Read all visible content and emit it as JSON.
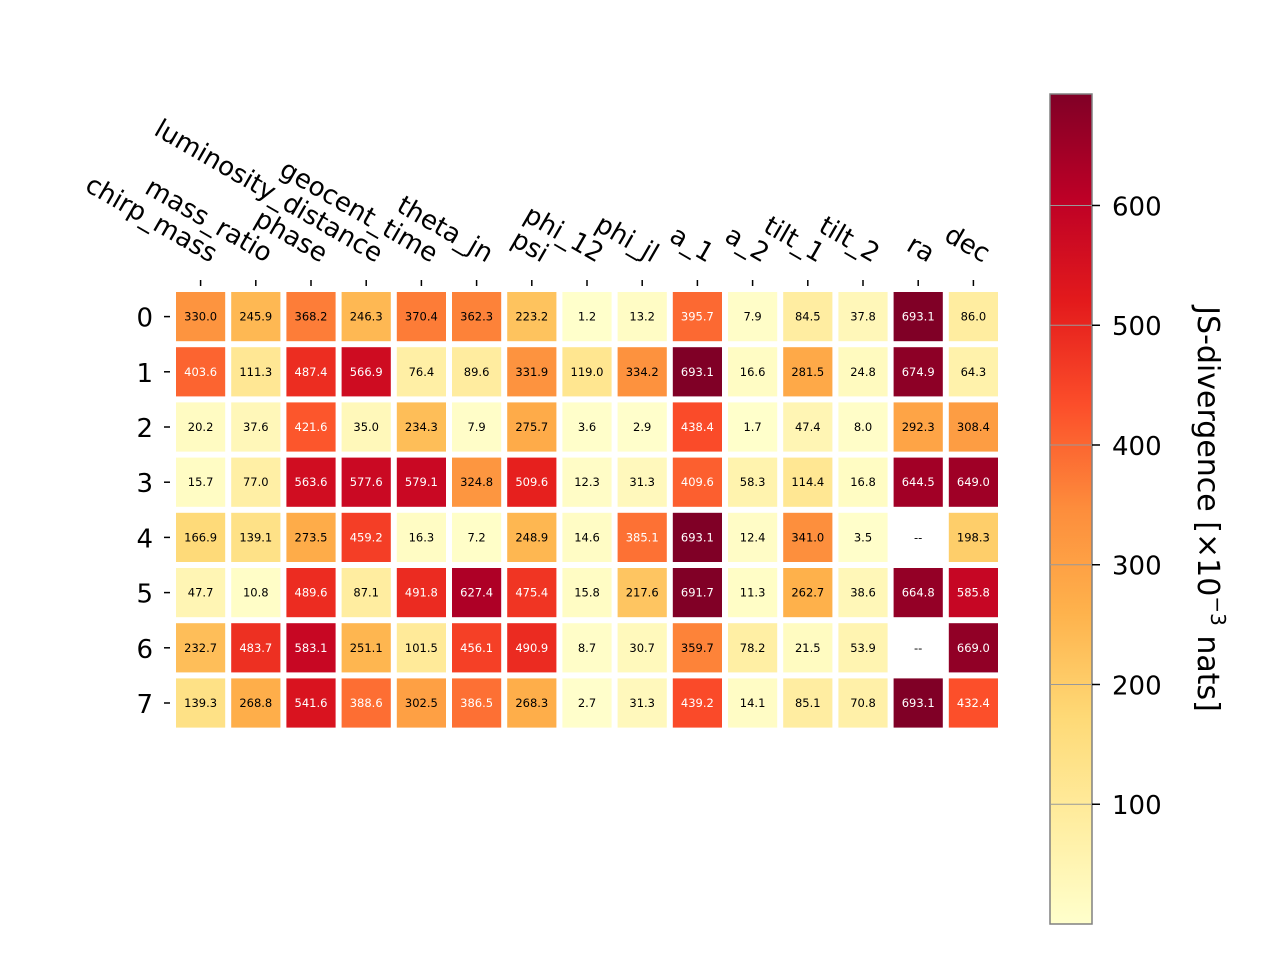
{
  "chart_data": {
    "type": "heatmap",
    "columns": [
      "chirp_mass",
      "mass_ratio",
      "phase",
      "luminosity_distance",
      "geocent_time",
      "theta_jn",
      "psi",
      "phi_12",
      "phi_jl",
      "a_1",
      "a_2",
      "tilt_1",
      "tilt_2",
      "ra",
      "dec"
    ],
    "rows": [
      "0",
      "1",
      "2",
      "3",
      "4",
      "5",
      "6",
      "7"
    ],
    "values": [
      [
        330.0,
        245.9,
        368.2,
        246.3,
        370.4,
        362.3,
        223.2,
        1.2,
        13.2,
        395.7,
        7.9,
        84.5,
        37.8,
        693.1,
        86.0
      ],
      [
        403.6,
        111.3,
        487.4,
        566.9,
        76.4,
        89.6,
        331.9,
        119.0,
        334.2,
        693.1,
        16.6,
        281.5,
        24.8,
        674.9,
        64.3
      ],
      [
        20.2,
        37.6,
        421.6,
        35.0,
        234.3,
        7.9,
        275.7,
        3.6,
        2.9,
        438.4,
        1.7,
        47.4,
        8.0,
        292.3,
        308.4
      ],
      [
        15.7,
        77.0,
        563.6,
        577.6,
        579.1,
        324.8,
        509.6,
        12.3,
        31.3,
        409.6,
        58.3,
        114.4,
        16.8,
        644.5,
        649.0
      ],
      [
        166.9,
        139.1,
        273.5,
        459.2,
        16.3,
        7.2,
        248.9,
        14.6,
        385.1,
        693.1,
        12.4,
        341.0,
        3.5,
        null,
        198.3
      ],
      [
        47.7,
        10.8,
        489.6,
        87.1,
        491.8,
        627.4,
        475.4,
        15.8,
        217.6,
        691.7,
        11.3,
        262.7,
        38.6,
        664.8,
        585.8
      ],
      [
        232.7,
        483.7,
        583.1,
        251.1,
        101.5,
        456.1,
        490.9,
        8.7,
        30.7,
        359.7,
        78.2,
        21.5,
        53.9,
        null,
        669.0
      ],
      [
        139.3,
        268.8,
        541.6,
        388.6,
        302.5,
        386.5,
        268.3,
        2.7,
        31.3,
        439.2,
        14.1,
        85.1,
        70.8,
        693.1,
        432.4
      ]
    ],
    "missing_label": "--",
    "colormap": "YlOrRd",
    "vmin": 0,
    "vmax": 693.1,
    "colorbar": {
      "label_main": "JS-divergence [×10",
      "label_sup": "−3",
      "label_end": " nats]",
      "ticks": [
        100,
        200,
        300,
        400,
        500,
        600
      ]
    },
    "colors": {
      "colormap_stops": [
        "#ffffcc",
        "#ffeda0",
        "#fed976",
        "#feb24c",
        "#fd8d3c",
        "#fc4e2a",
        "#e31a1c",
        "#bd0026",
        "#800026"
      ],
      "cell_border": "#ffffff",
      "colorbar_border": "#808080",
      "text_dark": "#000000",
      "text_light": "#ffffff"
    }
  }
}
